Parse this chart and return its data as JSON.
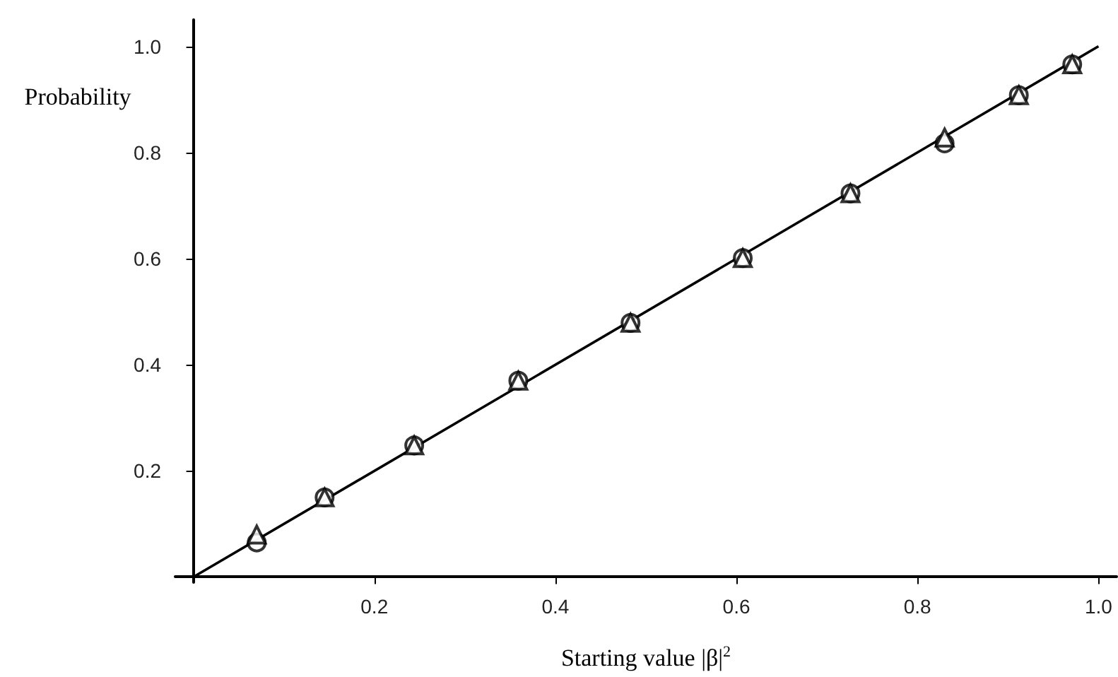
{
  "chart_data": {
    "type": "scatter",
    "xlabel": "Starting value |β|$^{2}$",
    "ylabel": "Probability",
    "xlim": [
      -0.02,
      1.02
    ],
    "ylim": [
      -0.01,
      1.05
    ],
    "xticks": [
      0.2,
      0.4,
      0.6,
      0.8,
      {
        "value": 1,
        "label": "1.0"
      }
    ],
    "yticks": [
      0.2,
      0.4,
      0.6,
      0.8,
      {
        "value": 1,
        "label": "1.0"
      }
    ],
    "grid": false,
    "series": [
      {
        "marker": "circle",
        "color": "#000000",
        "x": [
          0.07,
          0.145,
          0.244,
          0.359,
          0.483,
          0.607,
          0.726,
          0.83,
          0.912,
          0.971
        ],
        "values": [
          0.065,
          0.15,
          0.248,
          0.37,
          0.479,
          0.601,
          0.723,
          0.817,
          0.908,
          0.966
        ]
      },
      {
        "marker": "triangle",
        "color": "#000000",
        "x": [
          0.07,
          0.145,
          0.244,
          0.359,
          0.483,
          0.607,
          0.726,
          0.83,
          0.912,
          0.971
        ],
        "values": [
          0.08,
          0.15,
          0.248,
          0.37,
          0.479,
          0.601,
          0.723,
          0.828,
          0.908,
          0.966
        ]
      },
      {
        "type": "line",
        "marker": "none",
        "line_style": "solid",
        "color": "#000000",
        "x": [
          0,
          1
        ],
        "values": [
          0,
          1
        ]
      }
    ]
  }
}
